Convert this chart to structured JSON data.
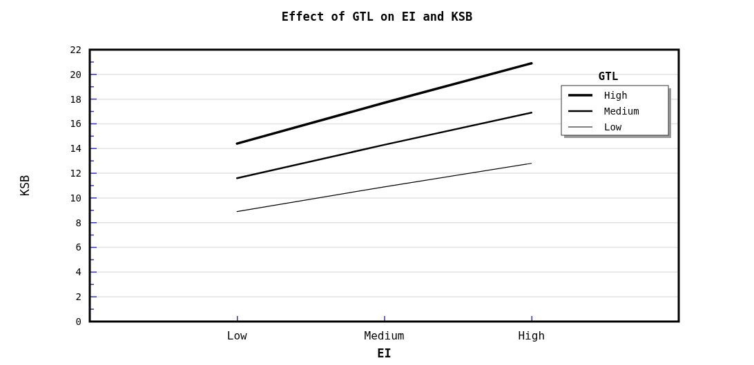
{
  "chart_data": {
    "type": "line",
    "title": "Effect of GTL on EI and KSB",
    "xlabel": "EI",
    "ylabel": "KSB",
    "legend_title": "GTL",
    "categories": [
      "Low",
      "Medium",
      "High"
    ],
    "series": [
      {
        "name": "High",
        "color": "#000000",
        "values": [
          14.4,
          17.7,
          20.9
        ]
      },
      {
        "name": "Medium",
        "color": "#000000",
        "values": [
          11.6,
          14.3,
          16.9
        ]
      },
      {
        "name": "Low",
        "color": "#000000",
        "values": [
          8.9,
          10.9,
          12.8
        ]
      }
    ],
    "ylim": [
      0,
      22
    ],
    "yticks": [
      0,
      {
        "value": 1,
        "label": null
      },
      2,
      {
        "value": 3,
        "label": null
      },
      4,
      {
        "value": 5,
        "label": null
      },
      6,
      {
        "value": 7,
        "label": null
      },
      8,
      {
        "value": 9,
        "label": null
      },
      10,
      {
        "value": 11,
        "label": null
      },
      12,
      {
        "value": 13,
        "label": null
      },
      14,
      {
        "value": 15,
        "label": null
      },
      16,
      {
        "value": 17,
        "label": null
      },
      18,
      {
        "value": 19,
        "label": null
      },
      20,
      {
        "value": 21,
        "label": null
      },
      22
    ],
    "grid": "y",
    "legend": "top right",
    "marker": "none",
    "line_style": "solid"
  }
}
